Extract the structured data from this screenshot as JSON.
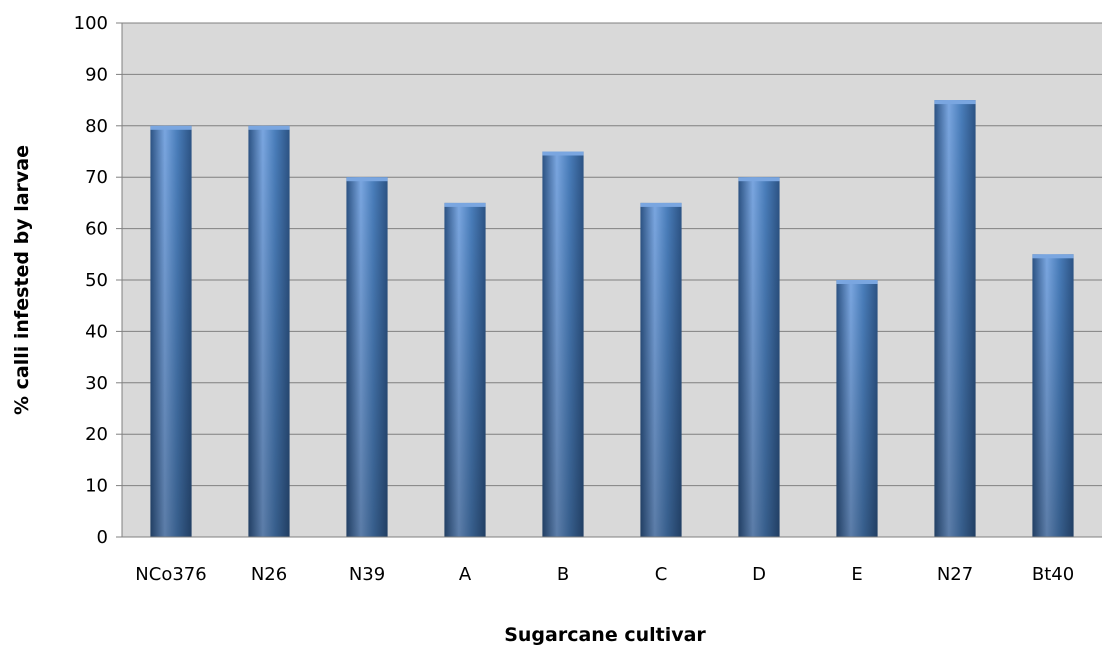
{
  "chart_data": {
    "type": "bar",
    "title": "",
    "xlabel": "Sugarcane cultivar",
    "ylabel": "% calli infested by larvae",
    "ylim": [
      0,
      100
    ],
    "ytick_step": 10,
    "yticks": [
      "0",
      "10",
      "20",
      "30",
      "40",
      "50",
      "60",
      "70",
      "80",
      "90",
      "100"
    ],
    "grid": true,
    "legend": "none",
    "categories": [
      "NCo376",
      "N26",
      "N39",
      "A",
      "B",
      "C",
      "D",
      "E",
      "N27",
      "Bt40"
    ],
    "values": [
      80,
      80,
      70,
      65,
      75,
      65,
      70,
      50,
      85,
      55
    ],
    "colors": {
      "bar": "#4a7ebb",
      "bar_light": "#7aa6e0",
      "bar_dark": "#2c5384",
      "plot_bg": "#d9d9d9",
      "grid": "#808080"
    }
  }
}
